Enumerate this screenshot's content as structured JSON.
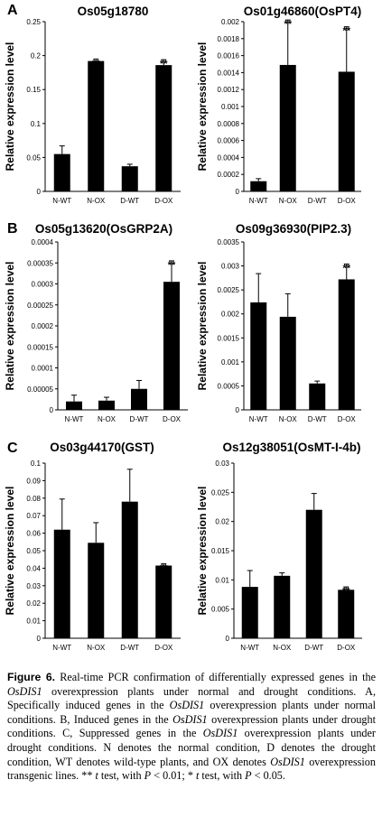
{
  "panel_labels": [
    "A",
    "B",
    "C"
  ],
  "chart_data": [
    {
      "type": "bar",
      "title": "Os05g18780",
      "ylabel": "Relative expression level",
      "xlabel": "",
      "categories": [
        "N-WT",
        "N-OX",
        "D-WT",
        "D-OX"
      ],
      "values": [
        0.055,
        0.192,
        0.037,
        0.186
      ],
      "errors": [
        0.012,
        0.003,
        0.003,
        0.008
      ],
      "significance": [
        "",
        "**",
        "",
        "**"
      ],
      "ylim": [
        0,
        0.25
      ],
      "yticks": [
        "0",
        "0.05",
        "0.1",
        "0.15",
        "0.2",
        "0.25"
      ],
      "grid": false
    },
    {
      "type": "bar",
      "title": "Os01g46860(OsPT4)",
      "ylabel": "Relative expression level",
      "xlabel": "",
      "categories": [
        "N-WT",
        "N-OX",
        "D-WT",
        "D-OX"
      ],
      "values": [
        0.00012,
        0.00149,
        0.0,
        0.00141
      ],
      "errors": [
        3e-05,
        0.00053,
        0.0,
        0.00053
      ],
      "significance": [
        "",
        "**",
        "",
        "**"
      ],
      "ylim": [
        0,
        0.002
      ],
      "yticks": [
        "0",
        "0.0002",
        "0.0004",
        "0.0006",
        "0.0008",
        "0.001",
        "0.0012",
        "0.0014",
        "0.0016",
        "0.0018",
        "0.002"
      ],
      "grid": false
    },
    {
      "type": "bar",
      "title": "Os05g13620(OsGRP2A)",
      "ylabel": "Relative expression level",
      "xlabel": "",
      "categories": [
        "N-WT",
        "N-OX",
        "D-WT",
        "D-OX"
      ],
      "values": [
        2e-05,
        2.2e-05,
        5e-05,
        0.000305
      ],
      "errors": [
        1.5e-05,
        8e-06,
        2e-05,
        5e-05
      ],
      "significance": [
        "",
        "",
        "",
        "**"
      ],
      "ylim": [
        0,
        0.0004
      ],
      "yticks": [
        "0",
        "0.00005",
        "0.0001",
        "0.00015",
        "0.0002",
        "0.00025",
        "0.0003",
        "0.00035",
        "0.0004"
      ],
      "grid": false
    },
    {
      "type": "bar",
      "title": "Os09g36930(PIP2.3)",
      "ylabel": "Relative expression level",
      "xlabel": "",
      "categories": [
        "N-WT",
        "N-OX",
        "D-WT",
        "D-OX"
      ],
      "values": [
        0.00224,
        0.00194,
        0.00055,
        0.00272
      ],
      "errors": [
        0.0006,
        0.00048,
        5e-05,
        0.00032
      ],
      "significance": [
        "",
        "",
        "",
        "**"
      ],
      "ylim": [
        0,
        0.0035
      ],
      "yticks": [
        "0",
        "0.0005",
        "0.001",
        "0.0015",
        "0.002",
        "0.0025",
        "0.003",
        "0.0035"
      ],
      "grid": false
    },
    {
      "type": "bar",
      "title": "Os03g44170(GST)",
      "ylabel": "Relative expression level",
      "xlabel": "",
      "categories": [
        "N-WT",
        "N-OX",
        "D-WT",
        "D-OX"
      ],
      "values": [
        0.062,
        0.0545,
        0.078,
        0.0415
      ],
      "errors": [
        0.0175,
        0.0115,
        0.0185,
        0.001
      ],
      "significance": [
        "",
        "",
        "",
        "**"
      ],
      "ylim": [
        0,
        0.1
      ],
      "yticks": [
        "0",
        "0.01",
        "0.02",
        "0.03",
        "0.04",
        "0.05",
        "0.06",
        "0.07",
        "0.08",
        "0.09",
        "0.1"
      ],
      "grid": false
    },
    {
      "type": "bar",
      "title": "Os12g38051(OsMT-I-4b)",
      "ylabel": "Relative expression level",
      "xlabel": "",
      "categories": [
        "N-WT",
        "N-OX",
        "D-WT",
        "D-OX"
      ],
      "values": [
        0.0088,
        0.0107,
        0.022,
        0.0083
      ],
      "errors": [
        0.0028,
        0.0005,
        0.0028,
        0.0005
      ],
      "significance": [
        "",
        "",
        "",
        "**"
      ],
      "ylim": [
        0,
        0.03
      ],
      "yticks": [
        "0",
        "0.005",
        "0.01",
        "0.015",
        "0.02",
        "0.025",
        "0.03"
      ],
      "grid": false
    }
  ],
  "caption": {
    "label": "Figure 6.",
    "parts": [
      {
        "t": " Real-time PCR confirmation of differentially expressed genes in the ",
        "i": false
      },
      {
        "t": "OsDIS1",
        "i": true
      },
      {
        "t": " overexpression plants under normal and drought conditions. A, Specifically induced genes in the ",
        "i": false
      },
      {
        "t": "OsDIS1",
        "i": true
      },
      {
        "t": " overexpression plants under normal conditions. B, Induced genes in the ",
        "i": false
      },
      {
        "t": "OsDIS1",
        "i": true
      },
      {
        "t": " overexpression plants under drought conditions. C, Suppressed genes in the ",
        "i": false
      },
      {
        "t": "OsDIS1",
        "i": true
      },
      {
        "t": " overexpression plants under drought conditions. N denotes the normal condition, D denotes the drought condition, WT denotes wild-type plants, and OX denotes ",
        "i": false
      },
      {
        "t": "OsDIS1",
        "i": true
      },
      {
        "t": " overexpression transgenic lines. ** ",
        "i": false
      },
      {
        "t": "t",
        "i": true
      },
      {
        "t": " test, with ",
        "i": false
      },
      {
        "t": "P",
        "i": true
      },
      {
        "t": " < 0.01; * ",
        "i": false
      },
      {
        "t": "t",
        "i": true
      },
      {
        "t": " test, with ",
        "i": false
      },
      {
        "t": "P",
        "i": true
      },
      {
        "t": " < 0.05.",
        "i": false
      }
    ]
  }
}
